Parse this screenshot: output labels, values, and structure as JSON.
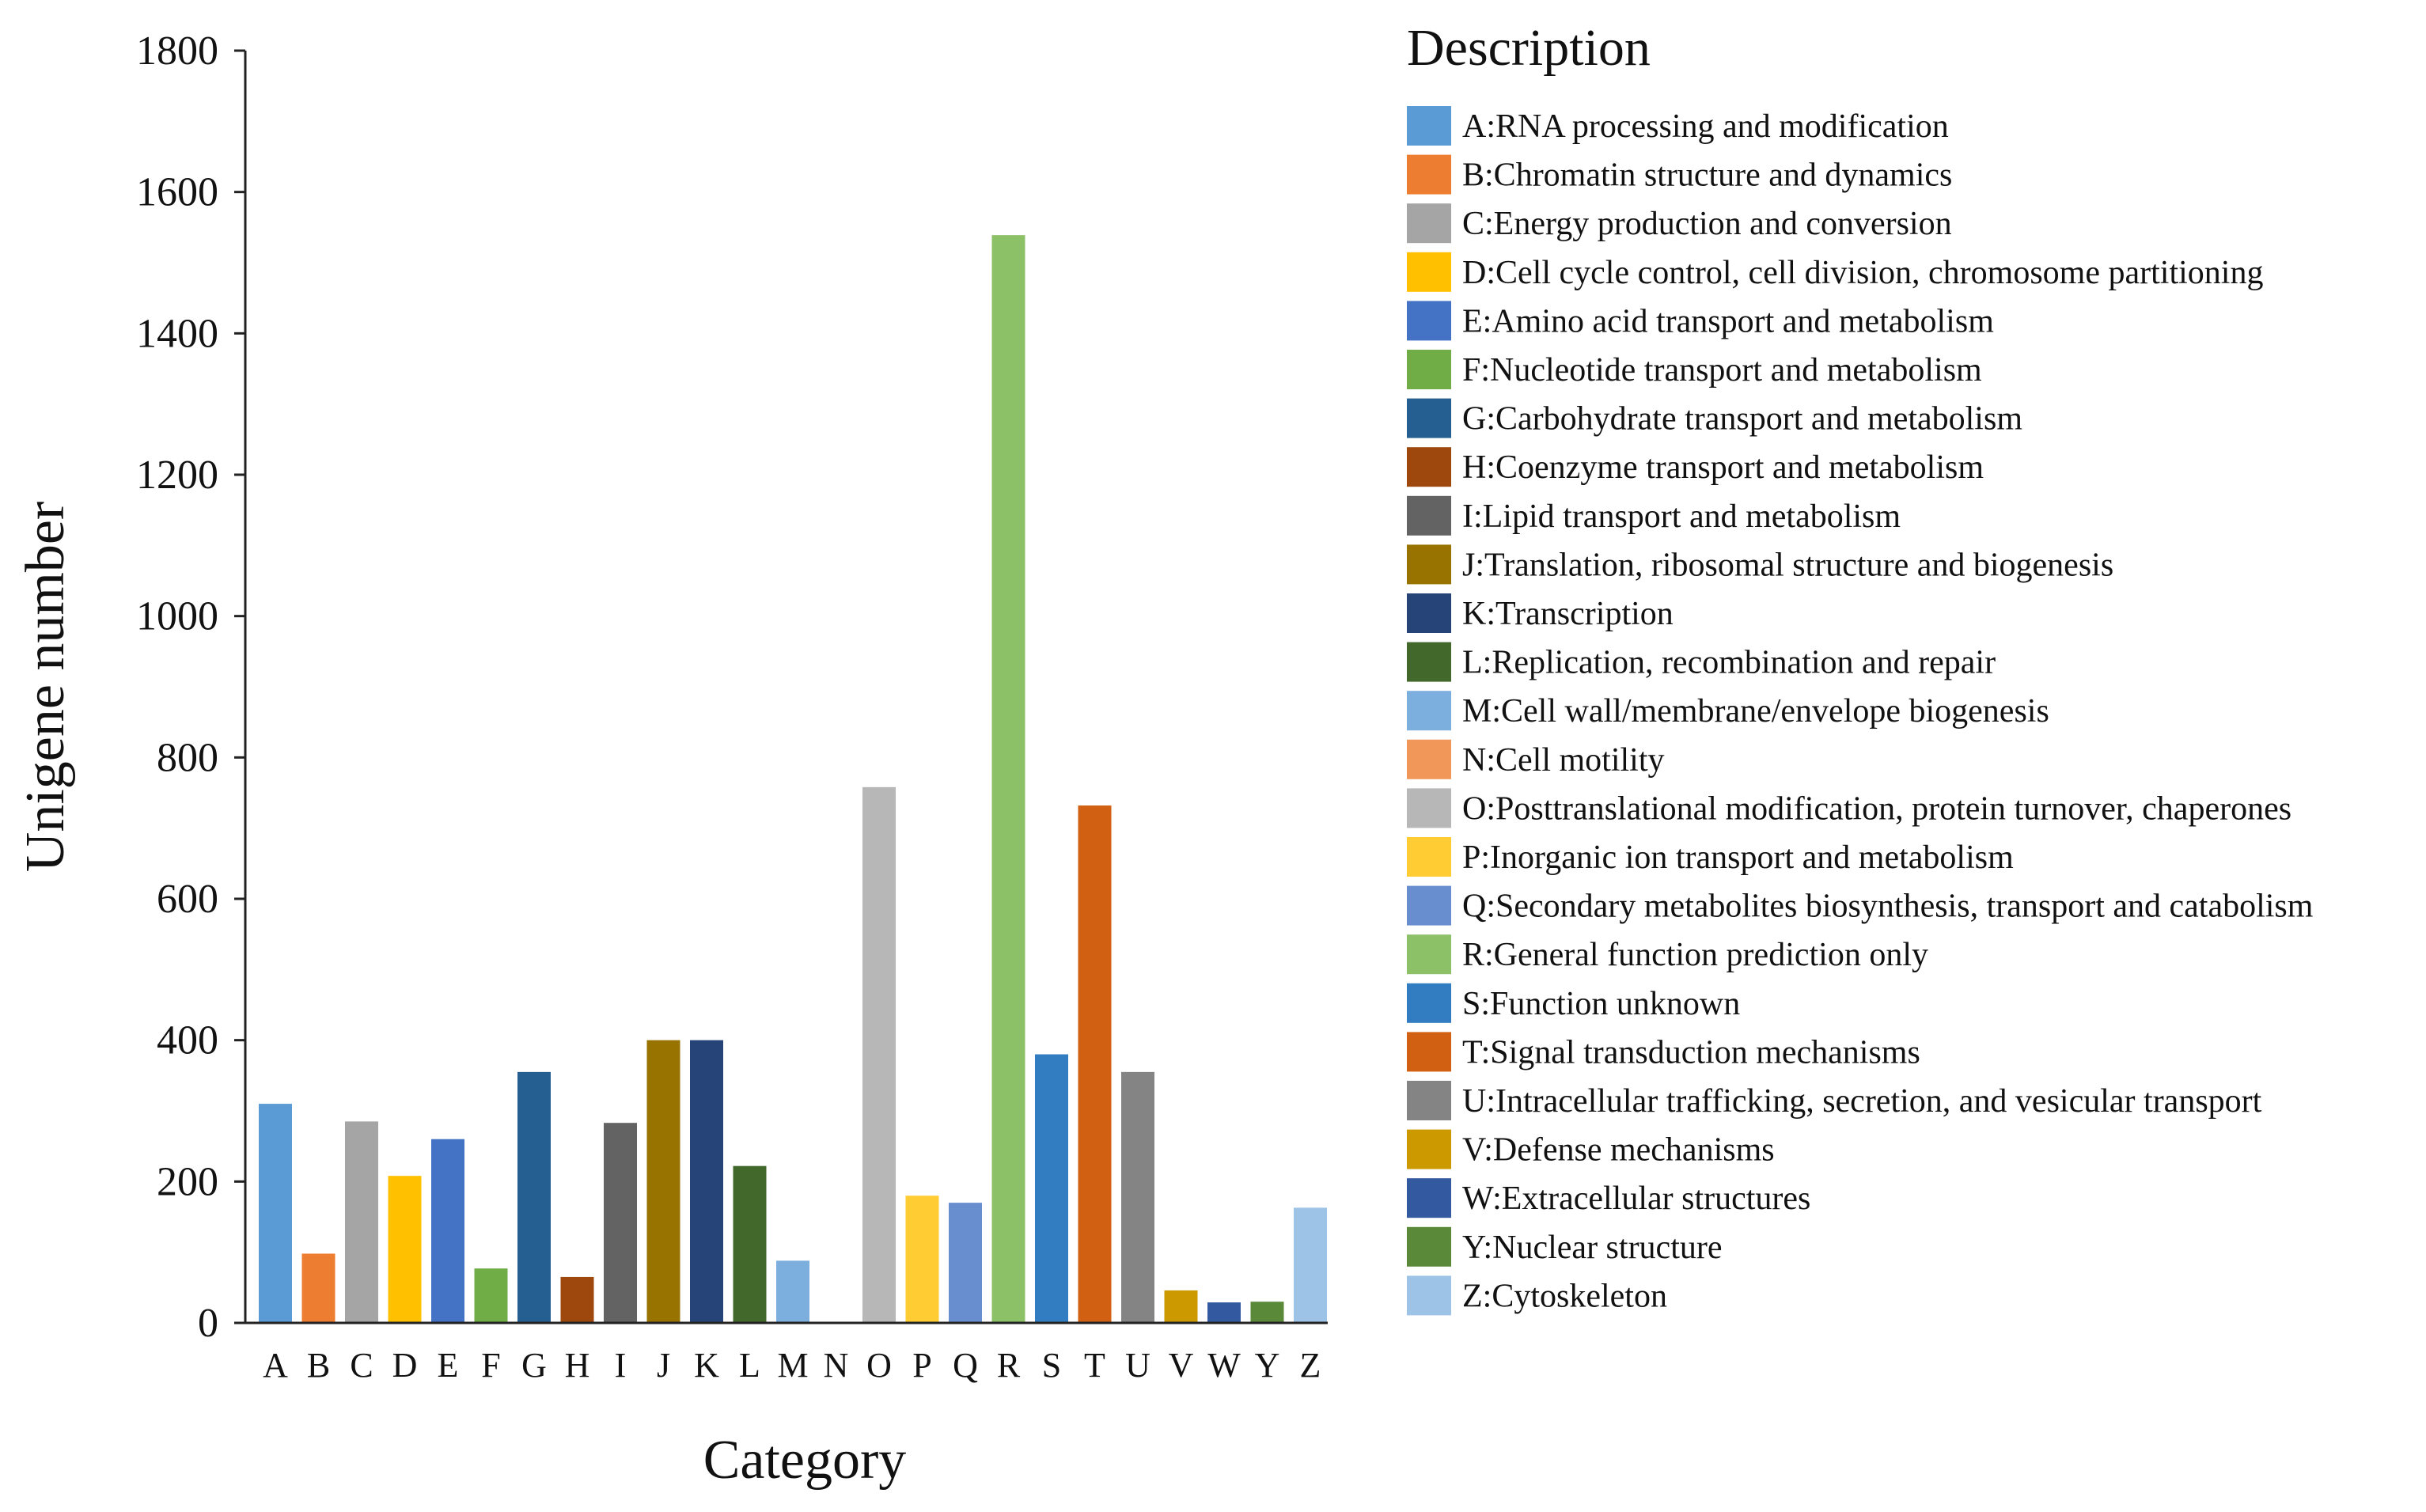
{
  "chart_data": {
    "type": "bar",
    "xlabel": "Category",
    "ylabel": "Unigene number",
    "ylim": [
      0,
      1800
    ],
    "yticks": [
      0,
      200,
      400,
      600,
      800,
      1000,
      1200,
      1400,
      1600,
      1800
    ],
    "grid": false,
    "legend_title": "Description",
    "legend_position": "right",
    "categories": [
      "A",
      "B",
      "C",
      "D",
      "E",
      "F",
      "G",
      "H",
      "I",
      "J",
      "K",
      "L",
      "M",
      "N",
      "O",
      "P",
      "Q",
      "R",
      "S",
      "T",
      "U",
      "V",
      "W",
      "Y",
      "Z"
    ],
    "values": [
      310,
      98,
      285,
      208,
      260,
      77,
      355,
      65,
      283,
      400,
      400,
      222,
      88,
      0,
      758,
      180,
      170,
      1539,
      380,
      732,
      355,
      46,
      29,
      30,
      163
    ],
    "colors": [
      "#5b9bd5",
      "#ed7d31",
      "#a5a5a5",
      "#ffc000",
      "#4472c4",
      "#70ad47",
      "#255e91",
      "#9e480e",
      "#636363",
      "#997300",
      "#264478",
      "#43682b",
      "#7cafdd",
      "#f1975a",
      "#b7b7b7",
      "#ffcd33",
      "#698ed0",
      "#8cc168",
      "#327dc2",
      "#d26012",
      "#848484",
      "#cc9a00",
      "#335aa1",
      "#5a8a39",
      "#9dc3e6"
    ],
    "legend": [
      "A:RNA processing and modification",
      "B:Chromatin structure and dynamics",
      "C:Energy production and conversion",
      "D:Cell cycle control, cell division, chromosome partitioning",
      "E:Amino acid transport and metabolism",
      "F:Nucleotide transport and metabolism",
      "G:Carbohydrate transport and metabolism",
      "H:Coenzyme transport and metabolism",
      "I:Lipid transport and metabolism",
      "J:Translation, ribosomal structure and biogenesis",
      "K:Transcription",
      "L:Replication, recombination and repair",
      "M:Cell wall/membrane/envelope biogenesis",
      "N:Cell motility",
      "O:Posttranslational modification, protein turnover, chaperones",
      "P:Inorganic ion transport and metabolism",
      "Q:Secondary metabolites biosynthesis, transport and catabolism",
      "R:General function prediction only",
      "S:Function unknown",
      "T:Signal transduction mechanisms",
      "U:Intracellular trafficking, secretion, and vesicular transport",
      "V:Defense mechanisms",
      "W:Extracellular structures",
      "Y:Nuclear structure",
      "Z:Cytoskeleton"
    ]
  }
}
